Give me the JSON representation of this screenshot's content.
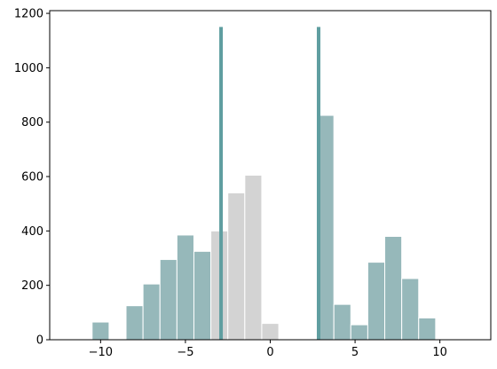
{
  "chart_data": {
    "type": "bar",
    "title": "",
    "xlabel": "",
    "ylabel": "",
    "xlim": [
      -13,
      13
    ],
    "ylim": [
      0,
      1210
    ],
    "x_ticks": [
      -10,
      -5,
      0,
      5,
      10
    ],
    "y_ticks": [
      0,
      200,
      400,
      600,
      800,
      1000,
      1200
    ],
    "bin_width": 1.0,
    "grid": false,
    "colors": {
      "highlight": "#96b8ba",
      "muted": "#d3d3d3",
      "threshold": "#5f9ea0",
      "edge": "#ffffff"
    },
    "series": [
      {
        "style": "highlight",
        "bins": [
          {
            "left": -10.5,
            "value": 65
          },
          {
            "left": -8.5,
            "value": 125
          },
          {
            "left": -7.5,
            "value": 205
          },
          {
            "left": -6.5,
            "value": 295
          },
          {
            "left": -5.5,
            "value": 385
          },
          {
            "left": -4.5,
            "value": 325
          },
          {
            "left": -3.5,
            "value": 180
          },
          {
            "left": 2.75,
            "value": 825
          },
          {
            "left": 3.75,
            "value": 130
          },
          {
            "left": 4.75,
            "value": 55
          },
          {
            "left": 5.75,
            "value": 285
          },
          {
            "left": 6.75,
            "value": 380
          },
          {
            "left": 7.75,
            "value": 225
          },
          {
            "left": 8.75,
            "value": 80
          }
        ]
      },
      {
        "style": "muted",
        "bins": [
          {
            "left": -3.5,
            "value": 400
          },
          {
            "left": -2.5,
            "value": 540
          },
          {
            "left": -1.5,
            "value": 605
          },
          {
            "left": -0.5,
            "value": 60
          }
        ]
      }
    ],
    "threshold_lines": [
      {
        "x": -2.9,
        "y_top": 1150
      },
      {
        "x": 2.85,
        "y_top": 1150
      }
    ]
  }
}
